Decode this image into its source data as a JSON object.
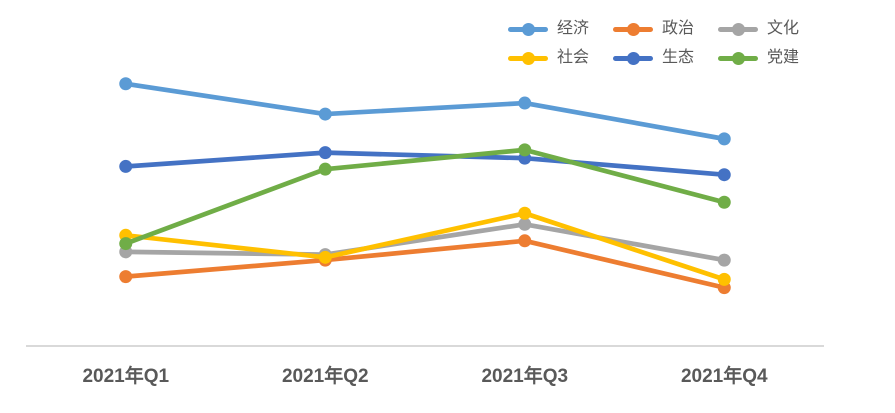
{
  "chart_data": {
    "type": "line",
    "title": "",
    "xlabel": "",
    "ylabel": "",
    "categories": [
      "2021年Q1",
      "2021年Q2",
      "2021年Q3",
      "2021年Q4"
    ],
    "series": [
      {
        "name": "经济",
        "color": "#5B9BD5",
        "values": [
          95,
          84,
          88,
          75
        ]
      },
      {
        "name": "政治",
        "color": "#ED7D31",
        "values": [
          25,
          31,
          38,
          21
        ]
      },
      {
        "name": "文化",
        "color": "#A5A5A5",
        "values": [
          34,
          33,
          44,
          31
        ]
      },
      {
        "name": "社会",
        "color": "#FFC000",
        "values": [
          40,
          32,
          48,
          24
        ]
      },
      {
        "name": "生态",
        "color": "#4472C4",
        "values": [
          65,
          70,
          68,
          62
        ]
      },
      {
        "name": "党建",
        "color": "#70AD47",
        "values": [
          37,
          64,
          71,
          52
        ]
      }
    ],
    "ylim": [
      0,
      100
    ],
    "y_axis_visible": false,
    "grid": false,
    "legend_position": "top-right",
    "legend_columns": 3,
    "marker": "circle",
    "axis_line_color": "#D9D9D9",
    "tick_label_color": "#595959",
    "legend_label_color": "#595959"
  }
}
